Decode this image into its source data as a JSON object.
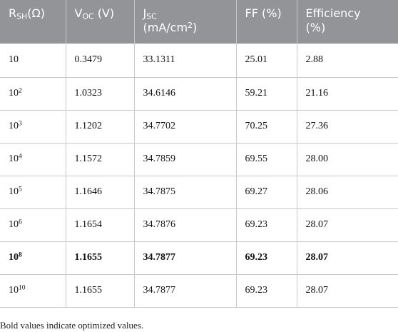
{
  "headers": [
    {
      "main": "R",
      "sub": "SH",
      "rest": "(Ω)"
    },
    {
      "main": "V",
      "sub": "OC",
      "rest": " (V)"
    },
    {
      "line1": "J",
      "sub": "SC",
      "line2a": "(mA/cm",
      "sup": "2",
      "line2b": ")"
    },
    {
      "label": "FF (%)"
    },
    {
      "line1": "Efficiency",
      "line2": "(%)"
    }
  ],
  "rows": [
    {
      "rsh_base": "10",
      "rsh_exp": "",
      "voc": "0.3479",
      "jsc": "33.1311",
      "ff": "25.01",
      "eff": "2.88"
    },
    {
      "rsh_base": "10",
      "rsh_exp": "2",
      "voc": "1.0323",
      "jsc": "34.6146",
      "ff": "59.21",
      "eff": "21.16"
    },
    {
      "rsh_base": "10",
      "rsh_exp": "3",
      "voc": "1.1202",
      "jsc": "34.7702",
      "ff": "70.25",
      "eff": "27.36"
    },
    {
      "rsh_base": "10",
      "rsh_exp": "4",
      "voc": "1.1572",
      "jsc": "34.7859",
      "ff": "69.55",
      "eff": "28.00"
    },
    {
      "rsh_base": "10",
      "rsh_exp": "5",
      "voc": "1.1646",
      "jsc": "34.7875",
      "ff": "69.27",
      "eff": "28.06"
    },
    {
      "rsh_base": "10",
      "rsh_exp": "6",
      "voc": "1.1654",
      "jsc": "34.7876",
      "ff": "69.23",
      "eff": "28.07"
    },
    {
      "rsh_base": "10",
      "rsh_exp": "8",
      "voc": "1.1655",
      "jsc": "34.7877",
      "ff": "69.23",
      "eff": "28.07"
    },
    {
      "rsh_base": "10",
      "rsh_exp": "10",
      "voc": "1.1655",
      "jsc": "34.7877",
      "ff": "69.23",
      "eff": "28.07"
    }
  ],
  "footnote": "Bold values indicate optimized values."
}
